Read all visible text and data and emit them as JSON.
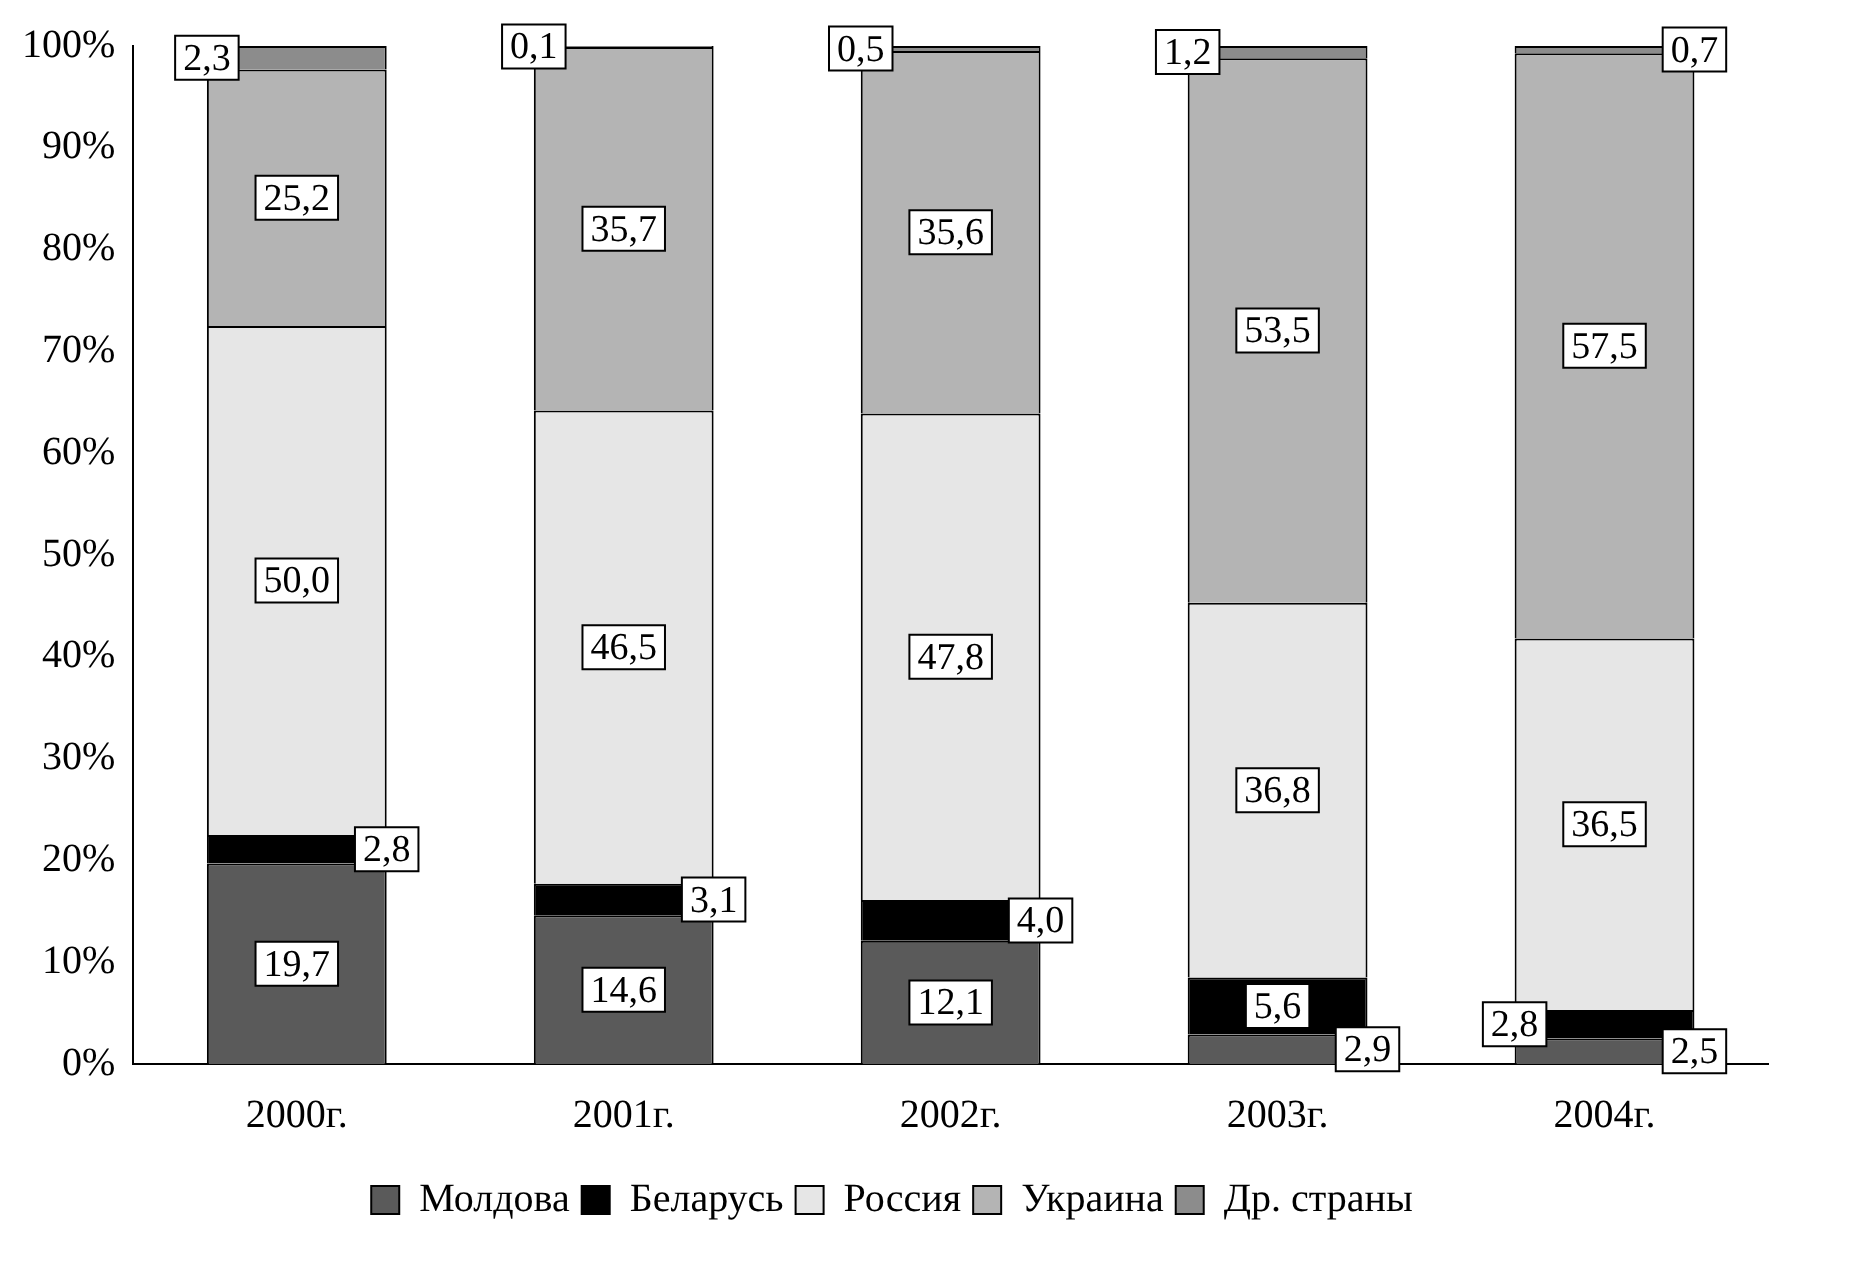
{
  "chart_data": {
    "type": "bar",
    "stacked": true,
    "categories": [
      "2000г.",
      "2001г.",
      "2002г.",
      "2003г.",
      "2004г."
    ],
    "series": [
      {
        "name": "Молдова",
        "color": "#5a5a5a",
        "values": [
          19.7,
          14.6,
          12.1,
          2.9,
          2.5
        ],
        "value_labels": [
          "19,7",
          "14,6",
          "12,1",
          "2,9",
          "2,5"
        ]
      },
      {
        "name": "Беларусь",
        "color": "#000000",
        "values": [
          2.8,
          3.1,
          4.0,
          5.6,
          2.8
        ],
        "value_labels": [
          "2,8",
          "3,1",
          "4,0",
          "5,6",
          "2,8"
        ]
      },
      {
        "name": "Россия",
        "color": "#e6e6e6",
        "values": [
          50.0,
          46.5,
          47.8,
          36.8,
          36.5
        ],
        "value_labels": [
          "50,0",
          "46,5",
          "47,8",
          "36,8",
          "36,5"
        ]
      },
      {
        "name": "Украина",
        "color": "#b4b4b4",
        "values": [
          25.2,
          35.7,
          35.6,
          53.5,
          57.5
        ],
        "value_labels": [
          "25,2",
          "35,7",
          "35,6",
          "53,5",
          "57,5"
        ]
      },
      {
        "name": "Др. страны",
        "color": "#8c8c8c",
        "values": [
          2.3,
          0.1,
          0.5,
          1.2,
          0.7
        ],
        "value_labels": [
          "2,3",
          "0,1",
          "0,5",
          "1,2",
          "0,7"
        ]
      }
    ],
    "ylim": [
      0,
      100
    ],
    "yticks": [
      {
        "value": 0,
        "label": "0%"
      },
      {
        "value": 10,
        "label": "10%"
      },
      {
        "value": 20,
        "label": "20%"
      },
      {
        "value": 30,
        "label": "30%"
      },
      {
        "value": 40,
        "label": "40%"
      },
      {
        "value": 50,
        "label": "50%"
      },
      {
        "value": 60,
        "label": "60%"
      },
      {
        "value": 70,
        "label": "70%"
      },
      {
        "value": 80,
        "label": "80%"
      },
      {
        "value": 90,
        "label": "90%"
      },
      {
        "value": 100,
        "label": "100%"
      }
    ],
    "grid": false,
    "legend": "bottom"
  }
}
